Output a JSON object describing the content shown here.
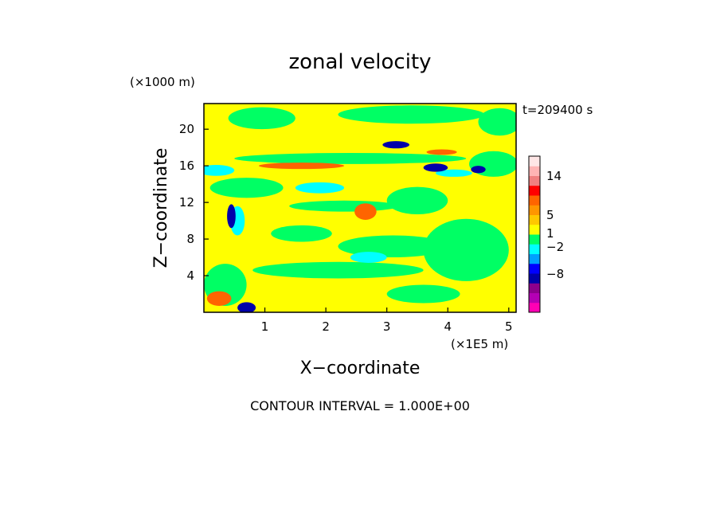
{
  "chart_data": {
    "type": "heatmap",
    "title": "zonal velocity",
    "xlabel": "X−coordinate",
    "ylabel": "Z−coordinate",
    "x_unit": "(×1E5 m)",
    "y_unit": "(×1000 m)",
    "time_label": "t=209400 s",
    "footer": "CONTOUR INTERVAL = 1.000E+00",
    "xlim": [
      0,
      5.12
    ],
    "ylim": [
      0,
      22.8
    ],
    "x_ticks": [
      "1",
      "2",
      "3",
      "4",
      "5"
    ],
    "y_ticks": [
      "4",
      "8",
      "12",
      "16",
      "20"
    ],
    "colorbar": {
      "labels": [
        "14",
        "5",
        "1",
        "−2",
        "−8"
      ],
      "colors": [
        "#ff00b4",
        "#b400b4",
        "#8c008c",
        "#0000aa",
        "#0000ff",
        "#00a0ff",
        "#00ffff",
        "#00ff64",
        "#ffff00",
        "#ffc800",
        "#ff9600",
        "#ff6400",
        "#ff0000",
        "#f08080",
        "#ffb4b4",
        "#ffe6e6"
      ]
    },
    "background_color": "#ffff00",
    "features": [
      {
        "value": 0,
        "x": 0.95,
        "z": 21.2,
        "rx": 0.55,
        "rz": 1.2
      },
      {
        "value": 0,
        "x": 3.4,
        "z": 21.6,
        "rx": 1.2,
        "rz": 1.0
      },
      {
        "value": 0,
        "x": 4.85,
        "z": 20.8,
        "rx": 0.35,
        "rz": 1.5
      },
      {
        "value": 0,
        "x": 2.4,
        "z": 16.8,
        "rx": 1.9,
        "rz": 0.6
      },
      {
        "value": 0,
        "x": 0.7,
        "z": 13.6,
        "rx": 0.6,
        "rz": 1.1
      },
      {
        "value": 0,
        "x": 2.3,
        "z": 11.6,
        "rx": 0.9,
        "rz": 0.6
      },
      {
        "value": 0,
        "x": 3.5,
        "z": 12.2,
        "rx": 0.5,
        "rz": 1.5
      },
      {
        "value": 0,
        "x": 1.6,
        "z": 8.6,
        "rx": 0.5,
        "rz": 0.9
      },
      {
        "value": 0,
        "x": 3.1,
        "z": 7.2,
        "rx": 0.9,
        "rz": 1.2
      },
      {
        "value": 0,
        "x": 4.3,
        "z": 6.8,
        "rx": 0.7,
        "rz": 3.4
      },
      {
        "value": 0,
        "x": 2.2,
        "z": 4.6,
        "rx": 1.4,
        "rz": 0.9
      },
      {
        "value": 0,
        "x": 0.35,
        "z": 3.0,
        "rx": 0.35,
        "rz": 2.3
      },
      {
        "value": 0,
        "x": 3.6,
        "z": 2.0,
        "rx": 0.6,
        "rz": 1.0
      },
      {
        "value": 0,
        "x": 4.75,
        "z": 16.2,
        "rx": 0.4,
        "rz": 1.4
      },
      {
        "value": 4,
        "x": 1.6,
        "z": 16.0,
        "rx": 0.7,
        "rz": 0.35
      },
      {
        "value": 4,
        "x": 3.9,
        "z": 17.5,
        "rx": 0.25,
        "rz": 0.3
      },
      {
        "value": 4,
        "x": 2.65,
        "z": 11.0,
        "rx": 0.18,
        "rz": 0.9
      },
      {
        "value": 4,
        "x": 0.25,
        "z": 1.5,
        "rx": 0.2,
        "rz": 0.8
      },
      {
        "value": -2,
        "x": 0.2,
        "z": 15.5,
        "rx": 0.3,
        "rz": 0.6
      },
      {
        "value": -2,
        "x": 1.9,
        "z": 13.6,
        "rx": 0.4,
        "rz": 0.6
      },
      {
        "value": -2,
        "x": 2.7,
        "z": 6.0,
        "rx": 0.3,
        "rz": 0.6
      },
      {
        "value": -2,
        "x": 4.1,
        "z": 15.2,
        "rx": 0.3,
        "rz": 0.4
      },
      {
        "value": -2,
        "x": 0.55,
        "z": 10.0,
        "rx": 0.12,
        "rz": 1.6
      },
      {
        "value": -6,
        "x": 3.15,
        "z": 18.3,
        "rx": 0.22,
        "rz": 0.4
      },
      {
        "value": -6,
        "x": 3.8,
        "z": 15.8,
        "rx": 0.2,
        "rz": 0.45
      },
      {
        "value": -6,
        "x": 4.5,
        "z": 15.6,
        "rx": 0.12,
        "rz": 0.4
      },
      {
        "value": -6,
        "x": 0.45,
        "z": 10.5,
        "rx": 0.07,
        "rz": 1.3
      },
      {
        "value": -6,
        "x": 0.7,
        "z": 0.5,
        "rx": 0.15,
        "rz": 0.6
      }
    ]
  }
}
